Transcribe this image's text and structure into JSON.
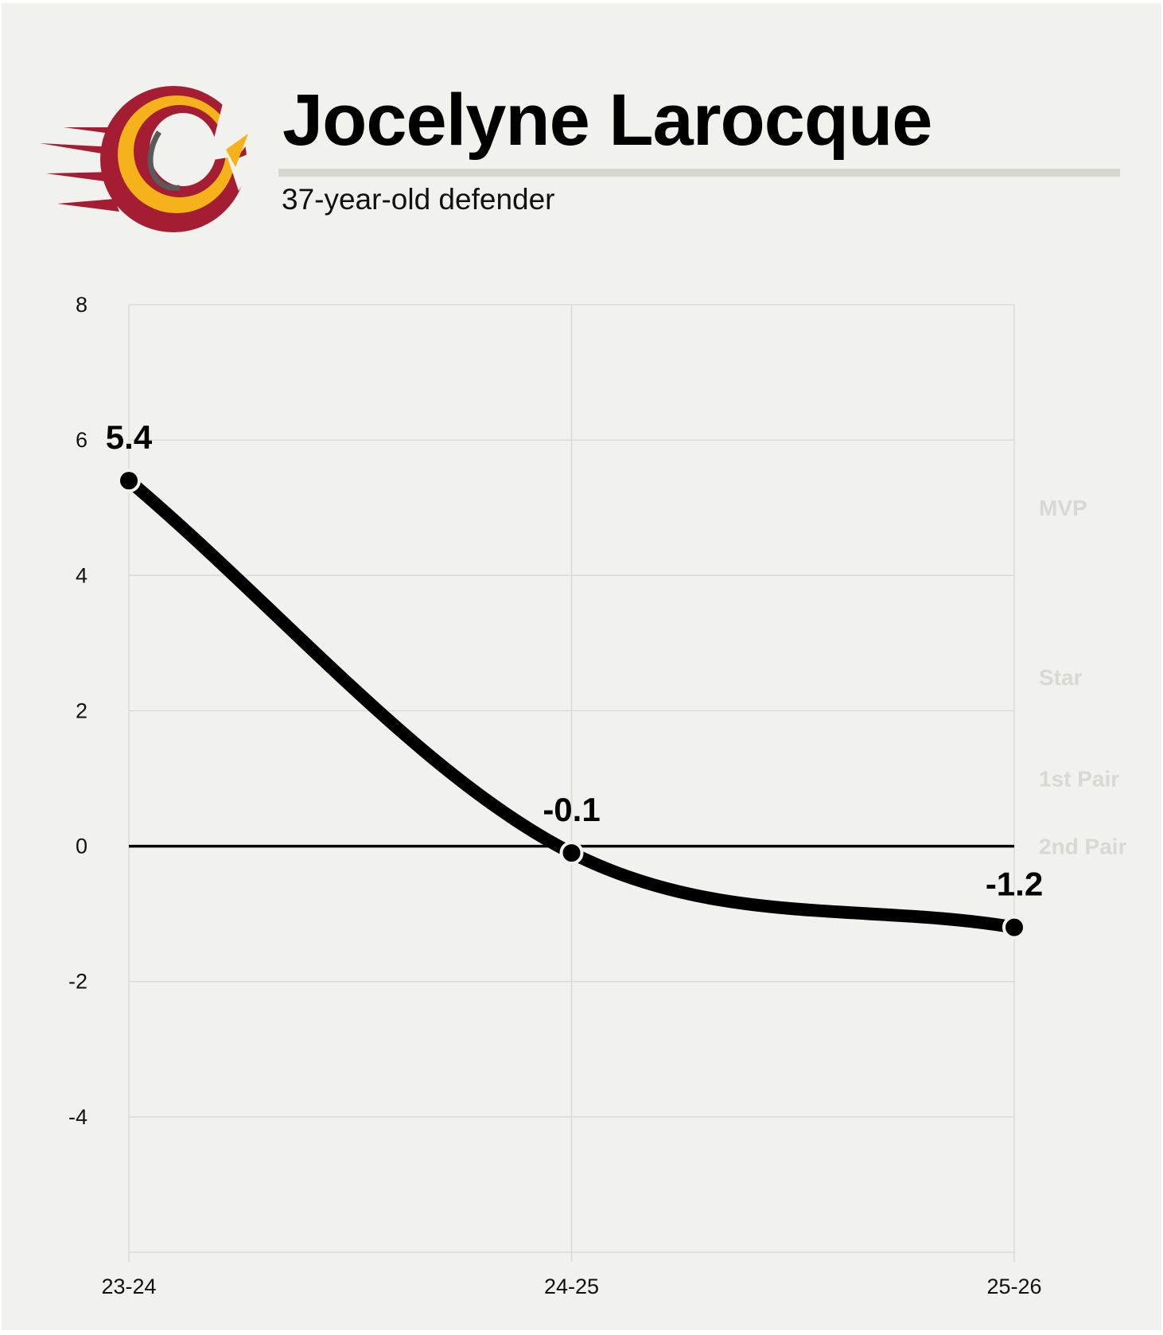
{
  "header": {
    "title": "Jocelyne Larocque",
    "subtitle": "37-year-old defender"
  },
  "logo": {
    "icon": "team-logo-icon",
    "colors": [
      "#a41d33",
      "#f5b21a",
      "#5a5a5a"
    ]
  },
  "chart_data": {
    "type": "line",
    "categories": [
      "23-24",
      "24-25",
      "25-26"
    ],
    "values": [
      5.4,
      -0.1,
      -1.2
    ],
    "value_labels": [
      "5.4",
      "-0.1",
      "-1.2"
    ],
    "ylim": [
      -6,
      8
    ],
    "yticks": [
      8,
      6,
      4,
      2,
      0,
      -2,
      -4
    ],
    "grid": true,
    "zero_line": true,
    "tiers": [
      {
        "label": "MVP",
        "value": 5
      },
      {
        "label": "Star",
        "value": 2.5
      },
      {
        "label": "1st Pair",
        "value": 1
      },
      {
        "label": "2nd Pair",
        "value": 0
      }
    ],
    "line_color": "#000000"
  }
}
